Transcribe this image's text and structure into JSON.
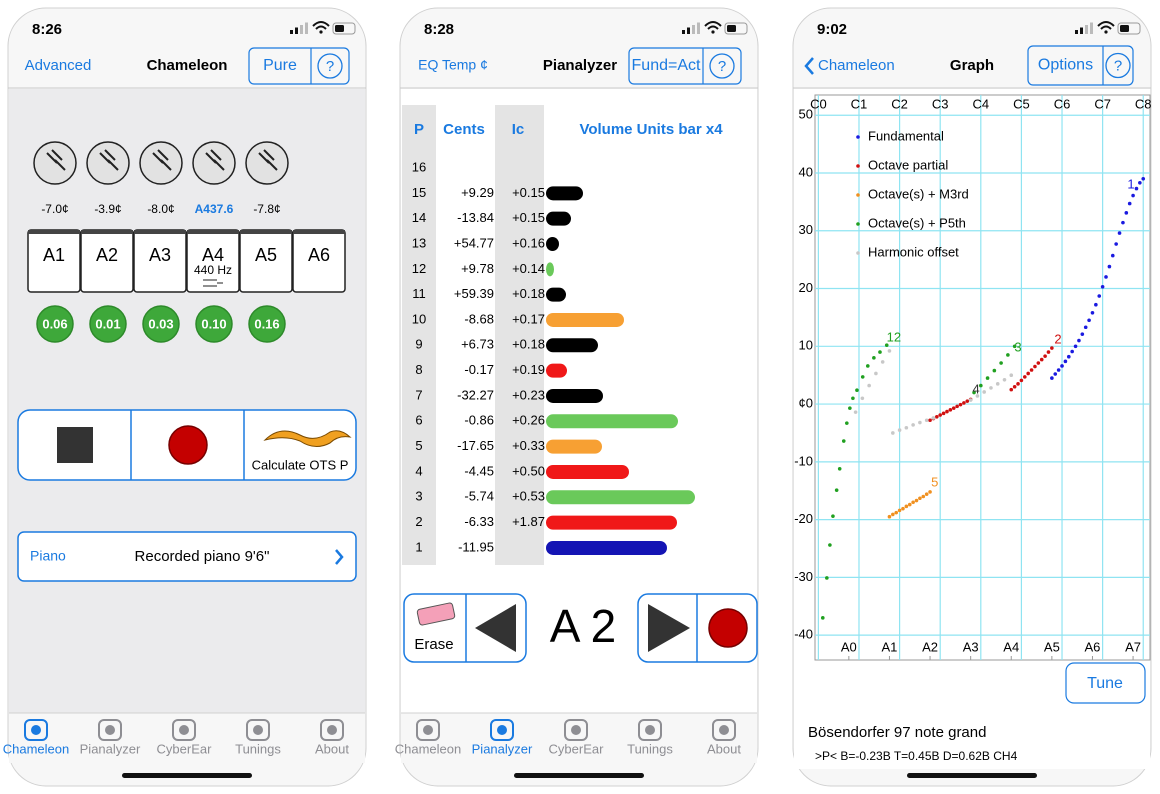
{
  "tabs": [
    "Chameleon",
    "Pianalyzer",
    "CyberEar",
    "Tunings",
    "About"
  ],
  "screens": [
    {
      "time": "8:26",
      "nav_left": "Advanced",
      "nav_title": "Chameleon",
      "nav_buttons": [
        "Pure",
        "?"
      ],
      "forks": [
        "-7.0¢",
        "-3.9¢",
        "-8.0¢",
        "A437.6",
        "-7.8¢"
      ],
      "keys": [
        "A1",
        "A2",
        "A3",
        "A4",
        "A5",
        "A6"
      ],
      "key_note": "440 Hz",
      "badges": [
        "0.06",
        "0.01",
        "0.03",
        "0.10",
        "0.16"
      ],
      "calculate": "Calculate OTS P",
      "instrument_label": "Piano",
      "instrument": "Recorded piano 9'6\""
    },
    {
      "time": "8:28",
      "nav_left": "EQ Temp ¢",
      "nav_title": "Pianalyzer",
      "nav_buttons": [
        "Fund=Act",
        "?"
      ],
      "table": {
        "headers": [
          "P",
          "Cents",
          "Ic",
          "Volume Units bar x4"
        ],
        "rows": [
          {
            "p": "16"
          },
          {
            "p": "15",
            "cents": "+9.29",
            "ic": "+0.15",
            "bar": 37,
            "color": "#000000"
          },
          {
            "p": "14",
            "cents": "-13.84",
            "ic": "+0.15",
            "bar": 25,
            "color": "#000000"
          },
          {
            "p": "13",
            "cents": "+54.77",
            "ic": "+0.16",
            "bar": 13,
            "color": "#000000"
          },
          {
            "p": "12",
            "cents": "+9.78",
            "ic": "+0.14",
            "bar": 8,
            "color": "#6ac95a"
          },
          {
            "p": "11",
            "cents": "+59.39",
            "ic": "+0.18",
            "bar": 20,
            "color": "#000000"
          },
          {
            "p": "10",
            "cents": "-8.68",
            "ic": "+0.17",
            "bar": 78,
            "color": "#f7a033"
          },
          {
            "p": "9",
            "cents": "+6.73",
            "ic": "+0.18",
            "bar": 52,
            "color": "#000000"
          },
          {
            "p": "8",
            "cents": "-0.17",
            "ic": "+0.19",
            "bar": 21,
            "color": "#f01818"
          },
          {
            "p": "7",
            "cents": "-32.27",
            "ic": "+0.23",
            "bar": 57,
            "color": "#000000"
          },
          {
            "p": "6",
            "cents": "-0.86",
            "ic": "+0.26",
            "bar": 132,
            "color": "#6ac95a"
          },
          {
            "p": "5",
            "cents": "-17.65",
            "ic": "+0.33",
            "bar": 56,
            "color": "#f7a033"
          },
          {
            "p": "4",
            "cents": "-4.45",
            "ic": "+0.50",
            "bar": 83,
            "color": "#f01818"
          },
          {
            "p": "3",
            "cents": "-5.74",
            "ic": "+0.53",
            "bar": 149,
            "color": "#6ac95a"
          },
          {
            "p": "2",
            "cents": "-6.33",
            "ic": "+1.87",
            "bar": 131,
            "color": "#f01818"
          },
          {
            "p": "1",
            "cents": "-11.95",
            "bar": 121,
            "color": "#1414b4"
          }
        ]
      },
      "erase": "Erase",
      "note": "A 2"
    },
    {
      "time": "9:02",
      "nav_back": "Chameleon",
      "nav_title": "Graph",
      "nav_buttons": [
        "Options",
        "?"
      ],
      "tune": "Tune",
      "instrument": "Bösendorfer 97 note grand",
      "status_line": ">P< B=-0.23B T=0.45B D=0.62B CH4"
    }
  ],
  "chart_data": {
    "type": "scatter",
    "xlim": [
      -9,
      90
    ],
    "ylim": [
      -44.3,
      53.5
    ],
    "xticks": [
      {
        "value": 1,
        "label": "A0"
      },
      {
        "value": 13,
        "label": "A1"
      },
      {
        "value": 25,
        "label": "A2"
      },
      {
        "value": 37,
        "label": "A3"
      },
      {
        "value": 49,
        "label": "A4"
      },
      {
        "value": 61,
        "label": "A5"
      },
      {
        "value": 73,
        "label": "A6"
      },
      {
        "value": 85,
        "label": "A7"
      }
    ],
    "x2ticks": [
      {
        "value": -8,
        "label": "C0"
      },
      {
        "value": 4,
        "label": "C1"
      },
      {
        "value": 16,
        "label": "C2"
      },
      {
        "value": 28,
        "label": "C3"
      },
      {
        "value": 40,
        "label": "C4"
      },
      {
        "value": 52,
        "label": "C5"
      },
      {
        "value": 64,
        "label": "C6"
      },
      {
        "value": 76,
        "label": "C7"
      },
      {
        "value": 88,
        "label": "C8"
      }
    ],
    "yticks": [
      50,
      40,
      30,
      20,
      10,
      {
        "value": 0,
        "label": "¢0"
      },
      -10,
      -20,
      -30,
      -40
    ],
    "grid": true,
    "legend": "upper left",
    "series": [
      {
        "name": "Fundamental",
        "color": "#1a1ae0",
        "x": [
          61,
          62,
          63,
          64,
          65,
          66,
          67,
          68,
          69,
          70,
          71,
          72,
          73,
          74,
          75,
          76,
          77,
          78,
          79,
          80,
          81,
          82,
          83,
          84,
          85,
          86,
          87,
          88
        ],
        "values": [
          4.5,
          5.2,
          5.9,
          6.6,
          7.4,
          8.2,
          9.1,
          10,
          11,
          12.1,
          13.3,
          14.5,
          15.8,
          17.2,
          18.7,
          20.3,
          22,
          23.8,
          25.7,
          27.7,
          29.6,
          31.4,
          33.1,
          34.7,
          36.1,
          37.3,
          38.3,
          39
        ]
      },
      {
        "name": "Octave partial",
        "color": "#d01010",
        "x": [
          25,
          26,
          27,
          28,
          29,
          30,
          31,
          32,
          33,
          34,
          35,
          36,
          37,
          49,
          50,
          51,
          52,
          53,
          54,
          55,
          56,
          57,
          58,
          59,
          60,
          61
        ],
        "values": [
          -2.8,
          -2.5,
          -2.2,
          -1.9,
          -1.6,
          -1.3,
          -1,
          -0.7,
          -0.4,
          -0.1,
          0.2,
          0.5,
          0.8,
          2.5,
          3,
          3.5,
          4.1,
          4.7,
          5.3,
          5.9,
          6.5,
          7.1,
          7.7,
          8.3,
          9,
          9.7
        ]
      },
      {
        "name": "Octave(s) + M3rd",
        "color": "#f09020",
        "x": [
          13,
          14,
          15,
          16,
          17,
          18,
          19,
          20,
          21,
          22,
          23,
          24,
          25
        ],
        "values": [
          -19.5,
          -19.1,
          -18.8,
          -18.4,
          -18.1,
          -17.7,
          -17.4,
          -17,
          -16.7,
          -16.3,
          -16,
          -15.6,
          -15.2
        ]
      },
      {
        "name": "Octave(s) + P5th",
        "color": "#20a020",
        "x": [
          -6.7,
          -5.5,
          -4.6,
          -3.7,
          -2.6,
          -1.7,
          -0.5,
          0.4,
          1.3,
          2.2,
          3.4,
          5.1,
          6.6,
          8.4,
          10.2,
          12.2,
          38,
          40,
          42,
          44,
          46,
          48,
          50
        ],
        "values": [
          -37,
          -30.1,
          -24.4,
          -19.4,
          -14.9,
          -11.2,
          -6.4,
          -3.3,
          -0.7,
          1,
          2.4,
          4.7,
          6.6,
          8,
          9,
          10.2,
          2,
          3.2,
          4.5,
          5.8,
          7.1,
          8.5,
          10
        ]
      },
      {
        "name": "Harmonic offset",
        "color": "#c8c8c8",
        "x": [
          3,
          5,
          7,
          9,
          11,
          13,
          14,
          16,
          18,
          20,
          22,
          24,
          26,
          37,
          39,
          41,
          43,
          45,
          47,
          49
        ],
        "values": [
          -1.4,
          1,
          3.2,
          5.3,
          7.3,
          9.2,
          -5,
          -4.5,
          -4.1,
          -3.6,
          -3.2,
          -2.8,
          -2.4,
          0.7,
          1.4,
          2.1,
          2.8,
          3.5,
          4.2,
          5
        ]
      }
    ],
    "annotations": [
      {
        "text": "1",
        "x": 84.4,
        "y": 37.9,
        "color": "#1a1ae0"
      },
      {
        "text": "12",
        "x": 14.3,
        "y": 11.4,
        "color": "#20a020"
      },
      {
        "text": "3",
        "x": 51,
        "y": 9.7,
        "color": "#20a020"
      },
      {
        "text": "2",
        "x": 62.8,
        "y": 11.1,
        "color": "#d01010"
      },
      {
        "text": "5",
        "x": 26.4,
        "y": -13.7,
        "color": "#f09020"
      },
      {
        "text": "4",
        "x": 38.6,
        "y": 2.4,
        "color": "#333333"
      }
    ]
  }
}
